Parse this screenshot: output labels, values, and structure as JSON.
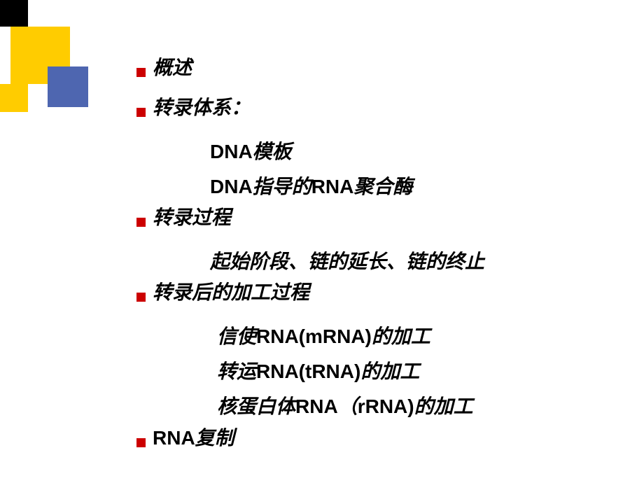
{
  "items": [
    {
      "type": "bullet",
      "text": "概述"
    },
    {
      "type": "bullet",
      "text": "转录体系："
    },
    {
      "type": "sub",
      "parts": [
        {
          "latin": true,
          "t": "DNA"
        },
        {
          "latin": false,
          "t": "模板"
        }
      ]
    },
    {
      "type": "sub",
      "parts": [
        {
          "latin": true,
          "t": "DNA"
        },
        {
          "latin": false,
          "t": "指导的"
        },
        {
          "latin": true,
          "t": "RNA"
        },
        {
          "latin": false,
          "t": "聚合酶"
        }
      ]
    },
    {
      "type": "bullet",
      "text": "转录过程"
    },
    {
      "type": "sub",
      "parts": [
        {
          "latin": false,
          "t": "起始阶段、链的延长、链的终止"
        }
      ]
    },
    {
      "type": "bullet",
      "text": "转录后的加工过程"
    },
    {
      "type": "sub2",
      "parts": [
        {
          "latin": false,
          "t": "信使"
        },
        {
          "latin": true,
          "t": "RNA(mRNA)"
        },
        {
          "latin": false,
          "t": "的加工"
        }
      ]
    },
    {
      "type": "sub2",
      "parts": [
        {
          "latin": false,
          "t": "转运"
        },
        {
          "latin": true,
          "t": "RNA(tRNA)"
        },
        {
          "latin": false,
          "t": "的加工"
        }
      ]
    },
    {
      "type": "sub2",
      "parts": [
        {
          "latin": false,
          "t": "核蛋白体"
        },
        {
          "latin": true,
          "t": "RNA"
        },
        {
          "latin": false,
          "t": "（"
        },
        {
          "latin": true,
          "t": "rRNA)"
        },
        {
          "latin": false,
          "t": "的加工"
        }
      ]
    },
    {
      "type": "bullet",
      "parts": [
        {
          "latin": true,
          "t": "RNA"
        },
        {
          "latin": false,
          "t": "复制"
        }
      ]
    }
  ],
  "colors": {
    "bullet": "#cc0000",
    "yellow": "#ffcc00",
    "blue": "#4e66b0",
    "black": "#000000",
    "background": "#ffffff"
  }
}
